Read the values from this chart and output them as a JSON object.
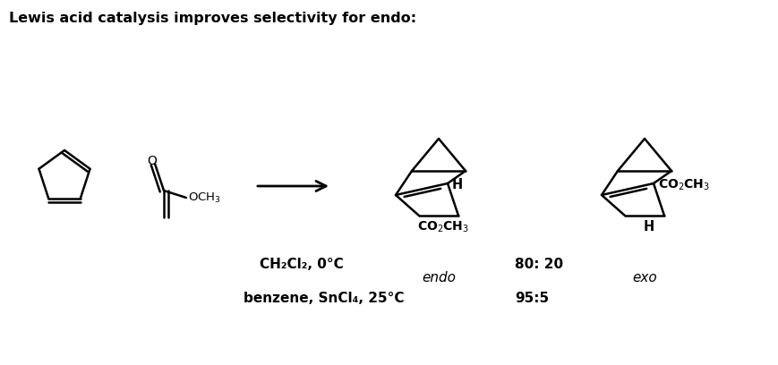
{
  "title": "Lewis acid catalysis improves selectivity for endo:",
  "title_fontsize": 11.5,
  "title_fontweight": "bold",
  "background_color": "#ffffff",
  "text_color": "#000000",
  "condition1_text": "CH₂Cl₂, 0°C",
  "condition2_text": "benzene, SnCl₄, 25°C",
  "ratio1_text": "80: 20",
  "ratio2_text": "95:5",
  "endo_label": "endo",
  "exo_label": "exo",
  "figsize": [
    8.7,
    4.08
  ],
  "dpi": 100
}
